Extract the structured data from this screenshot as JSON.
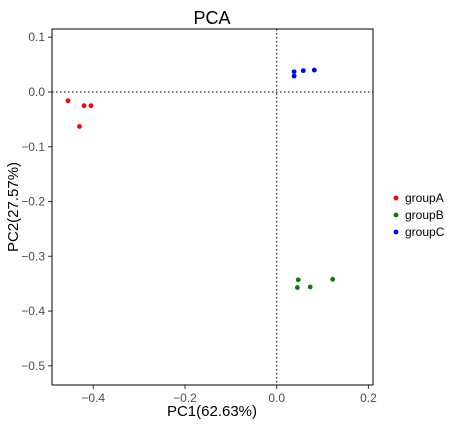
{
  "chart_data": {
    "type": "scatter",
    "title": "PCA",
    "xlabel": "PC1(62.63%)",
    "ylabel": "PC2(27.57%)",
    "xlim": [
      -0.49,
      0.21
    ],
    "ylim": [
      -0.535,
      0.115
    ],
    "x_ticks": [
      -0.4,
      -0.2,
      0.0,
      0.2
    ],
    "x_tick_labels": [
      "−0.4",
      "−0.2",
      "0.0",
      "0.2"
    ],
    "y_ticks": [
      0.1,
      0.0,
      -0.1,
      -0.2,
      -0.3,
      -0.4,
      -0.5
    ],
    "y_tick_labels": [
      "0.1",
      "0.0",
      "−0.1",
      "−0.2",
      "−0.3",
      "−0.4",
      "−0.5"
    ],
    "reference_lines": {
      "x": 0,
      "y": 0,
      "style": "dotted"
    },
    "grid": false,
    "legend_position": "right",
    "series": [
      {
        "name": "groupA",
        "color": "#ff0000",
        "points": [
          [
            -0.455,
            -0.016
          ],
          [
            -0.42,
            -0.025
          ],
          [
            -0.405,
            -0.025
          ],
          [
            -0.43,
            -0.063
          ]
        ]
      },
      {
        "name": "groupB",
        "color": "#008000",
        "points": [
          [
            0.047,
            -0.343
          ],
          [
            0.122,
            -0.342
          ],
          [
            0.045,
            -0.357
          ],
          [
            0.073,
            -0.356
          ]
        ]
      },
      {
        "name": "groupC",
        "color": "#0000ff",
        "points": [
          [
            0.038,
            0.037
          ],
          [
            0.058,
            0.039
          ],
          [
            0.082,
            0.04
          ],
          [
            0.038,
            0.029
          ]
        ]
      }
    ]
  }
}
